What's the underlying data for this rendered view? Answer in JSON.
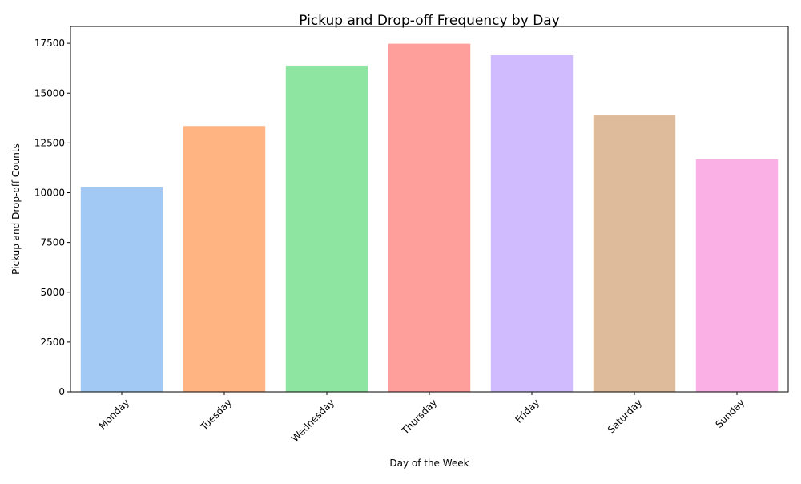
{
  "chart_data": {
    "type": "bar",
    "title": "Pickup and Drop-off Frequency by Day",
    "xlabel": "Day of the Week",
    "ylabel": "Pickup and Drop-off Counts",
    "categories": [
      "Monday",
      "Tuesday",
      "Wednesday",
      "Thursday",
      "Friday",
      "Saturday",
      "Sunday"
    ],
    "values": [
      10300,
      13350,
      16380,
      17480,
      16900,
      13880,
      11680
    ],
    "ylim": [
      0,
      18350
    ],
    "yticks": [
      0,
      2500,
      5000,
      7500,
      10000,
      12500,
      15000,
      17500
    ],
    "ytick_labels": [
      "0",
      "2500",
      "5000",
      "7500",
      "10000",
      "12500",
      "15000",
      "17500"
    ],
    "colors": [
      "#a1c9f4",
      "#ffb482",
      "#8de5a1",
      "#ff9f9b",
      "#d0bbff",
      "#debb9b",
      "#fab0e4"
    ],
    "grid": false,
    "legend": false
  }
}
